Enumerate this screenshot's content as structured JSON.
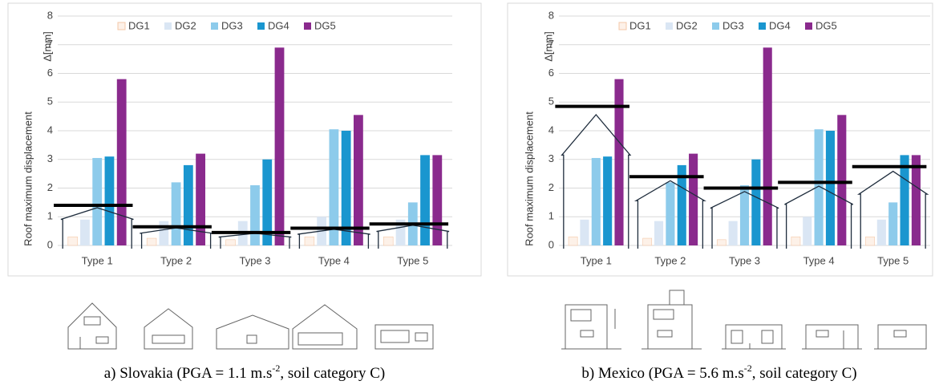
{
  "chart_data": [
    {
      "type": "bar",
      "categories": [
        "Type 1",
        "Type 2",
        "Type 3",
        "Type 4",
        "Type 5"
      ],
      "y_label": "Roof maximum displacement",
      "y_unit": "Δ[mm]",
      "series": [
        {
          "name": "DG1",
          "color": "#fdf1e8",
          "values": [
            0.3,
            0.25,
            0.2,
            0.3,
            0.3
          ]
        },
        {
          "name": "DG2",
          "color": "#dae6f4",
          "values": [
            0.9,
            0.85,
            0.85,
            1.0,
            0.9
          ]
        },
        {
          "name": "DG3",
          "color": "#8dcbeb",
          "values": [
            3.05,
            2.2,
            2.1,
            4.05,
            1.5
          ]
        },
        {
          "name": "DG4",
          "color": "#1a96cf",
          "values": [
            3.1,
            2.8,
            3.0,
            4.0,
            3.15
          ]
        },
        {
          "name": "DG5",
          "color": "#8a2a8d",
          "values": [
            5.8,
            3.2,
            6.9,
            4.55,
            3.15
          ]
        }
      ],
      "threshold_values": [
        1.4,
        0.65,
        0.45,
        0.6,
        0.75
      ],
      "ylim": [
        0,
        8
      ],
      "yticks": [
        0,
        1,
        2,
        3,
        4,
        5,
        6,
        7,
        8
      ],
      "grid": true,
      "legend": "top",
      "caption": {
        "text": "a) Slovakia (PGA = 1.1 m.s",
        "sup": "-2",
        "tail": ", soil category C)"
      }
    },
    {
      "type": "bar",
      "categories": [
        "Type 1",
        "Type 2",
        "Type 3",
        "Type 4",
        "Type 5"
      ],
      "y_label": "Roof maximum displacement",
      "y_unit": "Δ[mm]",
      "series": [
        {
          "name": "DG1",
          "color": "#fdf1e8",
          "values": [
            0.3,
            0.25,
            0.2,
            0.3,
            0.3
          ]
        },
        {
          "name": "DG2",
          "color": "#dae6f4",
          "values": [
            0.9,
            0.85,
            0.85,
            1.0,
            0.9
          ]
        },
        {
          "name": "DG3",
          "color": "#8dcbeb",
          "values": [
            3.05,
            2.2,
            2.1,
            4.05,
            1.5
          ]
        },
        {
          "name": "DG4",
          "color": "#1a96cf",
          "values": [
            3.1,
            2.8,
            3.0,
            4.0,
            3.15
          ]
        },
        {
          "name": "DG5",
          "color": "#8a2a8d",
          "values": [
            5.8,
            3.2,
            6.9,
            4.55,
            3.15
          ]
        }
      ],
      "threshold_values": [
        4.85,
        2.4,
        2.0,
        2.2,
        2.75
      ],
      "ylim": [
        0,
        8
      ],
      "yticks": [
        0,
        1,
        2,
        3,
        4,
        5,
        6,
        7,
        8
      ],
      "grid": true,
      "legend": "top",
      "caption": {
        "text": "b) Mexico (PGA = 5.6 m.s",
        "sup": "-2",
        "tail": ", soil category C)"
      }
    }
  ]
}
